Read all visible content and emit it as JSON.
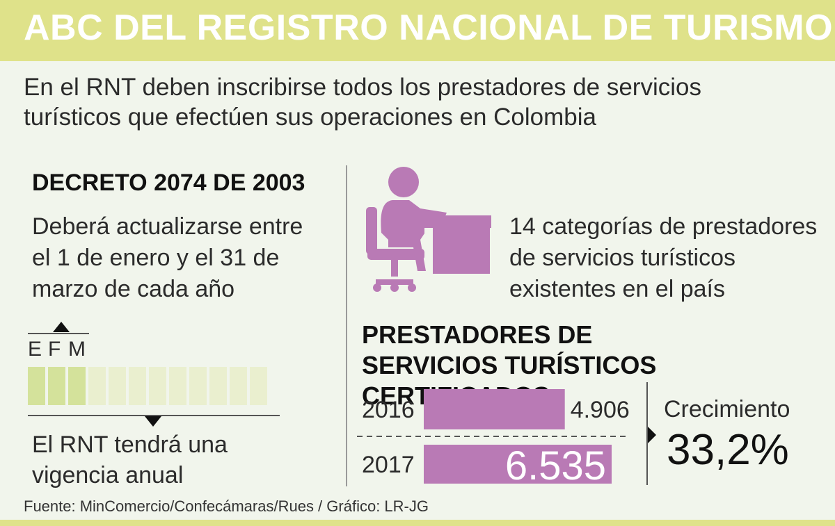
{
  "header": {
    "title": "ABC DEL REGISTRO NACIONAL DE TURISMO"
  },
  "intro": "En el RNT deben inscribirse todos los prestadores de servicios turísticos que efectúen sus operaciones en Colombia",
  "decree": {
    "title": "DECRETO 2074 DE 2003",
    "text": "Deberá actualizarse entre el 1 de enero y el 31 de marzo de cada año"
  },
  "months": {
    "labels": [
      "E",
      "F",
      "M"
    ],
    "total": 12,
    "active": 3
  },
  "validity": "El RNT tendrá una vigencia anual",
  "categories_text": "14 categorías de prestadores de servicios turísticos existentes en el país",
  "colors": {
    "accent_header": "#dfe28a",
    "bar": "#b97ab5",
    "month_active": "#d4e29b",
    "month_inactive": "#eaefcf"
  },
  "icons": {
    "desk": "person-at-desk-icon"
  },
  "growth": {
    "label": "Crecimiento",
    "value": "33,2%"
  },
  "footer": {
    "source": "Fuente: MinComercio/Confecámaras/Rues / Gráfico: LR-JG"
  },
  "chart_data": {
    "type": "bar",
    "orientation": "horizontal",
    "title": "PRESTADORES DE SERVICIOS TURÍSTICOS CERTIFICADOS",
    "categories": [
      "2016",
      "2017"
    ],
    "values": [
      4906,
      6535
    ],
    "value_labels": [
      "4.906",
      "6.535"
    ]
  }
}
